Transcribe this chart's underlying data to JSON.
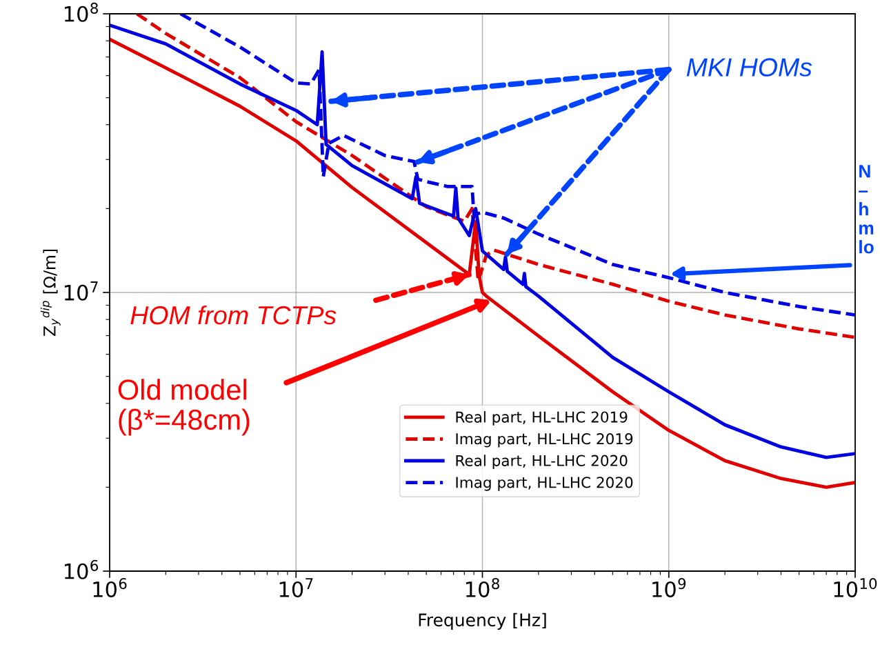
{
  "chart_data": {
    "type": "line",
    "xlabel": "Frequency [Hz]",
    "ylabel": "Z$_{y}$$^{dip}$ [Ω/m]",
    "log": "xy",
    "grid": true,
    "legend": "bottom",
    "xlim": [
      1000000,
      10000000000
    ],
    "ylim": [
      1000000,
      100000000
    ],
    "xticks": [
      {
        "value": 1000000,
        "label": "10$^{6}$"
      },
      {
        "value": 10000000,
        "label": "10$^{7}$"
      },
      {
        "value": 100000000,
        "label": "10$^{8}$"
      },
      {
        "value": 1000000000,
        "label": "10$^{9}$"
      },
      {
        "value": 10000000000,
        "label": "10$^{10}$"
      }
    ],
    "yticks": [
      {
        "value": 1000000,
        "label": "10$^{6}$"
      },
      {
        "value": 10000000,
        "label": "10$^{7}$"
      },
      {
        "value": 100000000,
        "label": "10$^{8}$"
      }
    ],
    "series": [
      {
        "name": "Real part, HL-LHC 2019",
        "color": "#e00000",
        "line_style": "solid",
        "x": [
          1000000,
          2000000,
          5000000,
          10000000,
          20000000,
          50000000,
          85000000,
          92000000,
          96000000,
          100000000,
          105000000,
          200000000,
          500000000,
          1000000000,
          2000000000,
          4000000000,
          7000000000,
          10000000000
        ],
        "values": [
          81000000,
          64000000,
          46600000,
          35000000,
          23800000,
          15100000,
          11600000,
          18000000,
          11500000,
          10000000,
          9700000,
          6980000,
          4400000,
          3200000,
          2490000,
          2150000,
          2000000,
          2080000
        ]
      },
      {
        "name": "Imag part, HL-LHC 2019",
        "color": "#e00000",
        "line_style": "dashed",
        "x": [
          1400000,
          2000000,
          5000000,
          10000000,
          20000000,
          50000000,
          80000000,
          88000000,
          95000000,
          105000000,
          115000000,
          200000000,
          500000000,
          1000000000,
          2000000000,
          5000000000,
          10000000000
        ],
        "values": [
          100000000,
          85000000,
          59000000,
          41000000,
          31000000,
          20300000,
          18000000,
          20000000,
          11000000,
          13600000,
          14200000,
          12600000,
          10700000,
          9300000,
          8300000,
          7400000,
          6900000
        ]
      },
      {
        "name": "Real part, HL-LHC 2020",
        "color": "#0000e0",
        "line_style": "solid",
        "x": [
          1000000,
          2000000,
          5000000,
          10000000,
          13000000,
          13800000,
          14500000,
          20000000,
          42000000,
          44000000,
          46000000,
          70000000,
          72000000,
          74000000,
          85000000,
          92000000,
          100000000,
          130000000,
          133000000,
          136000000,
          165000000,
          168000000,
          171000000,
          200000000,
          500000000,
          1000000000,
          2000000000,
          4000000000,
          7000000000,
          10000000000
        ],
        "values": [
          91000000,
          78000000,
          56000000,
          45000000,
          40000000,
          73000000,
          34000000,
          28500000,
          21700000,
          26000000,
          20900000,
          18800000,
          23700000,
          18500000,
          16000000,
          20000000,
          14100000,
          12100000,
          13400000,
          11900000,
          10700000,
          11700000,
          10500000,
          9700000,
          5850000,
          4400000,
          3350000,
          2790000,
          2560000,
          2640000
        ]
      },
      {
        "name": "Imag part, HL-LHC 2020",
        "color": "#0000e0",
        "line_style": "dashed",
        "x": [
          2400000,
          5000000,
          10000000,
          12000000,
          13300000,
          14000000,
          15000000,
          18000000,
          30000000,
          43000000,
          45000000,
          50000000,
          65000000,
          88000000,
          90000000,
          100000000,
          130000000,
          200000000,
          500000000,
          1000000000,
          2000000000,
          5000000000,
          10000000000
        ],
        "values": [
          100000000,
          76000000,
          56500000,
          56000000,
          63000000,
          26000000,
          34300000,
          36600000,
          31000000,
          29500000,
          25500000,
          25000000,
          24000000,
          24000000,
          19000000,
          19400000,
          18500000,
          16200000,
          12600000,
          11300000,
          10000000,
          8900000,
          8300000
        ]
      }
    ],
    "annotations": [
      "MKI HOMs",
      "HOM from TCTPs",
      "Old model\n(β*=48cm)",
      "N\n–\nh\nm\nlo"
    ]
  }
}
